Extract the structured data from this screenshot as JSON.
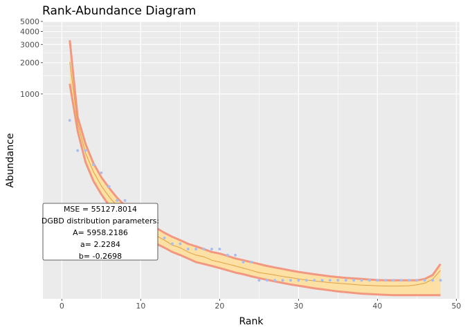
{
  "chart_data": {
    "type": "line",
    "title": "Rank-Abundance Diagram",
    "xlabel": "Rank",
    "ylabel": "Abundance",
    "xlim": [
      -2.4,
      50.4
    ],
    "ylim": [
      10.62,
      5000
    ],
    "y_scale": "log",
    "grid": true,
    "x_ticks": [
      0,
      10,
      20,
      30,
      40,
      50
    ],
    "x_tick_labels": [
      "0",
      "10",
      "20",
      "30",
      "40",
      "50"
    ],
    "y_ticks": [
      1000,
      2000,
      3000,
      4000,
      5000
    ],
    "y_tick_labels": [
      "1000",
      "2000",
      "3000",
      "4000",
      "5000"
    ],
    "colors": {
      "points": "#a6bff0",
      "band_fill": "#fde0a4",
      "band_edge": "#f29880",
      "fit_line": "#e0a040",
      "panel": "#ebebeb",
      "grid": "#ffffff"
    },
    "series": [
      {
        "kind": "points",
        "x": [
          1,
          2,
          3,
          4,
          5,
          6,
          7,
          8,
          9,
          10,
          11,
          12,
          13,
          14,
          15,
          16,
          17,
          18,
          19,
          20,
          21,
          22,
          23,
          24,
          25,
          26,
          27,
          28,
          29,
          30,
          31,
          32,
          33,
          34,
          35,
          36,
          37,
          38,
          39,
          40,
          41,
          42,
          43,
          44,
          45,
          46,
          47,
          48
        ],
        "y": [
          557,
          285,
          285,
          208,
          174,
          128,
          94,
          94,
          74,
          61,
          52,
          46,
          41,
          36,
          36,
          32,
          32,
          32,
          32,
          32,
          28,
          28,
          24,
          24,
          16,
          16,
          16,
          16,
          16,
          16,
          16,
          16,
          16,
          16,
          16,
          16,
          16,
          16,
          16,
          16,
          16,
          16,
          16,
          16,
          16,
          16,
          16,
          16
        ]
      },
      {
        "kind": "fit",
        "x": [
          1,
          2,
          3,
          4,
          5,
          6,
          7,
          8,
          9,
          10,
          11,
          12,
          13,
          14,
          15,
          16,
          17,
          18,
          19,
          20,
          21,
          22,
          23,
          24,
          25,
          26,
          27,
          28,
          29,
          30,
          31,
          32,
          33,
          34,
          35,
          36,
          37,
          38,
          39,
          40,
          41,
          42,
          43,
          44,
          45,
          46,
          47,
          48
        ],
        "y": [
          2036,
          523,
          270,
          178,
          130,
          102,
          83,
          70,
          61,
          53,
          47,
          43,
          39,
          35,
          33,
          30,
          28,
          27,
          25,
          24,
          23,
          22,
          21,
          20,
          19,
          18.5,
          18,
          17.4,
          17,
          16.5,
          16.1,
          15.8,
          15.5,
          15.2,
          15,
          14.8,
          14.6,
          14.4,
          14.3,
          14.2,
          14.1,
          14.1,
          14.1,
          14.2,
          14.5,
          15,
          16.4,
          20
        ]
      },
      {
        "kind": "band_upper",
        "x": [
          1,
          2,
          3,
          4,
          5,
          6,
          7,
          8,
          9,
          10,
          11,
          12,
          13,
          14,
          15,
          16,
          17,
          18,
          19,
          20,
          21,
          22,
          23,
          24,
          25,
          26,
          27,
          28,
          29,
          30,
          31,
          32,
          33,
          34,
          35,
          36,
          37,
          38,
          39,
          40,
          41,
          42,
          43,
          44,
          45,
          46,
          47,
          48
        ],
        "y": [
          3300,
          600,
          330,
          215,
          158,
          124,
          100,
          84,
          73,
          64,
          57,
          51,
          46,
          42,
          39,
          36,
          34,
          32,
          30,
          29,
          27.5,
          26,
          25,
          24,
          23,
          22,
          21.3,
          20.6,
          19.9,
          19.3,
          18.8,
          18.3,
          17.9,
          17.5,
          17.2,
          16.9,
          16.7,
          16.5,
          16.3,
          16.1,
          16,
          16,
          16,
          16,
          16,
          16.5,
          18,
          23
        ]
      },
      {
        "kind": "band_lower",
        "x": [
          1,
          2,
          3,
          4,
          5,
          6,
          7,
          8,
          9,
          10,
          11,
          12,
          13,
          14,
          15,
          16,
          17,
          18,
          19,
          20,
          21,
          22,
          23,
          24,
          25,
          26,
          27,
          28,
          29,
          30,
          31,
          32,
          33,
          34,
          35,
          36,
          37,
          38,
          39,
          40,
          41,
          42,
          43,
          44,
          45,
          46,
          47,
          48
        ],
        "y": [
          1250,
          440,
          220,
          145,
          108,
          84,
          70,
          59,
          51,
          45,
          40,
          36,
          33,
          30,
          28,
          26,
          24,
          23,
          22,
          21,
          20,
          19,
          18.3,
          17.5,
          16.8,
          16.2,
          15.6,
          15.1,
          14.6,
          14.2,
          13.8,
          13.4,
          13.1,
          12.8,
          12.5,
          12.3,
          12.1,
          11.9,
          11.8,
          11.7,
          11.6,
          11.5,
          11.5,
          11.5,
          11.5,
          11.5,
          11.5,
          11.5
        ]
      }
    ],
    "annotation": {
      "lines": [
        "MSE = 55127.8014",
        "DGBD distribution parameters:",
        "A= 5958.2186",
        "a= 2.2284",
        "b= -0.2698"
      ]
    }
  }
}
